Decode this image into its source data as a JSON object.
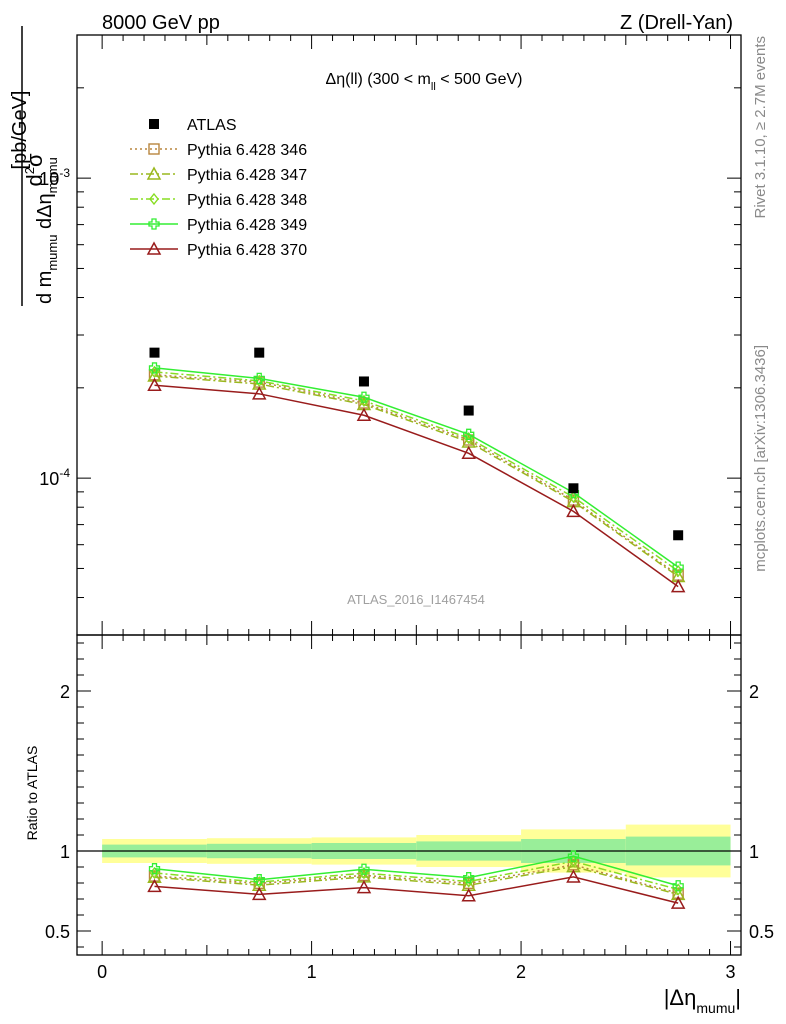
{
  "header": {
    "left": "8000 GeV pp",
    "right": "Z (Drell-Yan)"
  },
  "side_labels": {
    "rivet": "Rivet 3.1.10, ≥ 2.7M events",
    "mcplots": "mcplots.cern.ch [arXiv:1306.3436]"
  },
  "chart_data": {
    "type": "line",
    "title": "Δη(ll) (300 < m_ll < 500 GeV)",
    "analysis_label": "ATLAS_2016_I1467454",
    "xlabel": "|Δη_mumu|",
    "ylabel": "d²σ / d m_mumu dΔη_mumu [pb/GeV]",
    "ratio_ylabel": "Ratio to ATLAS",
    "x_scale": "linear",
    "y_scale": "log",
    "xlim": [
      -0.12,
      3.05
    ],
    "ylim": [
      3e-05,
      0.003
    ],
    "ratio_ylim": [
      0.35,
      2.35
    ],
    "legend_position": "top-left",
    "x_ticks": [
      "0",
      "1",
      "2",
      "3"
    ],
    "y_ticks": [
      "10^-4",
      "10^-3"
    ],
    "ratio_ticks": [
      "0.5",
      "1",
      "2"
    ],
    "x_edges": [
      0,
      0.5,
      1.0,
      1.5,
      2.0,
      2.5,
      3.0
    ],
    "x": [
      0.25,
      0.75,
      1.25,
      1.75,
      2.25,
      2.75
    ],
    "data": {
      "name": "ATLAS",
      "values": [
        0.000262,
        0.000262,
        0.00021,
        0.000168,
        9.25e-05,
        6.45e-05
      ],
      "band_inner": [
        0.04,
        0.045,
        0.05,
        0.06,
        0.075,
        0.09
      ],
      "band_outer": [
        0.075,
        0.08,
        0.085,
        0.1,
        0.135,
        0.165
      ]
    },
    "series": [
      {
        "name": "Pythia 6.428 346",
        "color": "#b8863e",
        "marker": "square-open",
        "dash": "2,3",
        "values": [
          0.000221,
          0.000209,
          0.000178,
          0.000134,
          8.45e-05,
          4.75e-05
        ]
      },
      {
        "name": "Pythia 6.428 347",
        "color": "#9ab81e",
        "marker": "triangle-open",
        "dash": "8,3,2,3",
        "values": [
          0.000219,
          0.000206,
          0.000176,
          0.000132,
          8.35e-05,
          4.7e-05
        ]
      },
      {
        "name": "Pythia 6.428 348",
        "color": "#88dd22",
        "marker": "diamond-open",
        "dash": "8,3,2,3",
        "values": [
          0.000226,
          0.000211,
          0.000181,
          0.000136,
          8.65e-05,
          4.9e-05
        ]
      },
      {
        "name": "Pythia 6.428 349",
        "color": "#33ee33",
        "marker": "cross-open",
        "dash": "",
        "values": [
          0.000233,
          0.000215,
          0.000186,
          0.00014,
          8.95e-05,
          5.05e-05
        ]
      },
      {
        "name": "Pythia 6.428 370",
        "color": "#991c1c",
        "marker": "triangle-open",
        "dash": "",
        "values": [
          0.000204,
          0.000191,
          0.000162,
          0.000121,
          7.75e-05,
          4.35e-05
        ]
      }
    ]
  }
}
